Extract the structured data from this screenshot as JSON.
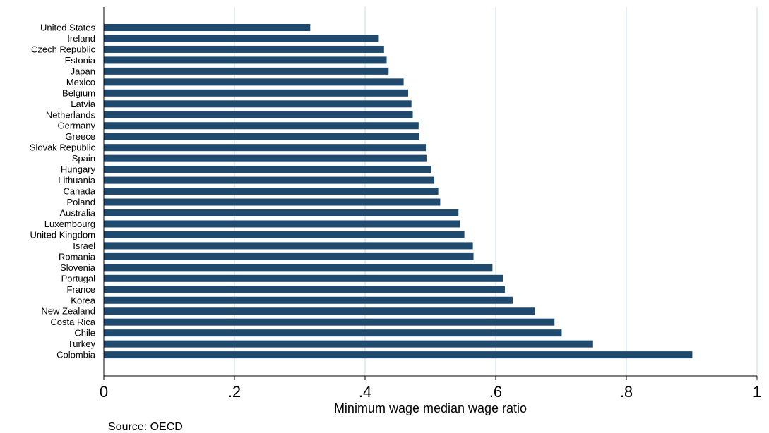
{
  "chart_data": {
    "type": "bar",
    "orientation": "horizontal",
    "categories": [
      "United States",
      "Ireland",
      "Czech Republic",
      "Estonia",
      "Japan",
      "Mexico",
      "Belgium",
      "Latvia",
      "Netherlands",
      "Germany",
      "Greece",
      "Slovak Republic",
      "Spain",
      "Hungary",
      "Lithuania",
      "Canada",
      "Poland",
      "Australia",
      "Luxembourg",
      "United Kingdom",
      "Israel",
      "Romania",
      "Slovenia",
      "Portugal",
      "France",
      "Korea",
      "New Zealand",
      "Costa Rica",
      "Chile",
      "Turkey",
      "Colombia"
    ],
    "values": [
      0.316,
      0.421,
      0.429,
      0.433,
      0.436,
      0.459,
      0.466,
      0.471,
      0.473,
      0.482,
      0.483,
      0.493,
      0.494,
      0.501,
      0.506,
      0.512,
      0.515,
      0.543,
      0.545,
      0.552,
      0.565,
      0.566,
      0.595,
      0.611,
      0.614,
      0.626,
      0.66,
      0.69,
      0.701,
      0.749,
      0.901
    ],
    "title": "",
    "xlabel": "Minimum wage median wage ratio",
    "ylabel": "",
    "xlim": [
      0,
      1
    ],
    "xticks": [
      0,
      0.2,
      0.4,
      0.6,
      0.8,
      1
    ],
    "xtick_labels": [
      "0",
      ".2",
      ".4",
      ".6",
      ".8",
      "1"
    ],
    "grid": true,
    "bar_color": "#1f4a6e",
    "grid_color": "#e3ecef",
    "note": "Source: OECD"
  }
}
